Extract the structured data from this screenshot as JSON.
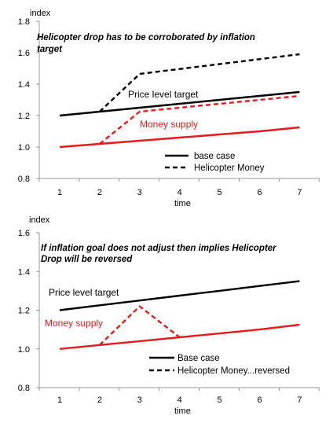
{
  "chart_data": [
    {
      "type": "line",
      "title_lines": [
        "Helicopter drop has to be corroborated by inflation",
        "target"
      ],
      "ylabel": "index",
      "xlabel": "time",
      "categories": [
        "1",
        "2",
        "3",
        "4",
        "5",
        "6",
        "7"
      ],
      "ylim": [
        0.8,
        1.8
      ],
      "yticks": [
        "0.8",
        "1.0",
        "1.2",
        "1.4",
        "1.6",
        "1.8"
      ],
      "ytick_values": [
        0.8,
        1.0,
        1.2,
        1.4,
        1.6,
        1.8
      ],
      "grid": false,
      "series": [
        {
          "group": "Price level target",
          "style": "base",
          "color": "#000000",
          "x": [
            1,
            2,
            3,
            4,
            5,
            6,
            7
          ],
          "values": [
            1.2,
            1.225,
            1.25,
            1.275,
            1.3,
            1.325,
            1.35
          ]
        },
        {
          "group": "Price level target",
          "style": "helicopter",
          "color": "#000000",
          "x": [
            2,
            3,
            7
          ],
          "values": [
            1.225,
            1.465,
            1.59
          ]
        },
        {
          "group": "Money supply",
          "style": "base",
          "color": "#e8191b",
          "x": [
            1,
            2,
            3,
            4,
            5,
            6,
            7
          ],
          "values": [
            1.0,
            1.02,
            1.04,
            1.06,
            1.08,
            1.1,
            1.125
          ]
        },
        {
          "group": "Money supply",
          "style": "helicopter",
          "color": "#e8191b",
          "x": [
            2,
            3,
            7
          ],
          "values": [
            1.02,
            1.225,
            1.325
          ]
        }
      ],
      "annotations": [
        {
          "text": "Price level target",
          "color": "#000000"
        },
        {
          "text": "Money supply",
          "color": "#e8191b"
        }
      ],
      "legend": {
        "placement": "bottom-right",
        "entries": [
          {
            "label": "base case",
            "style": "solid"
          },
          {
            "label": "Helicopter Money",
            "style": "dashed"
          }
        ]
      }
    },
    {
      "type": "line",
      "title_lines": [
        "If inflation goal does not adjust then implies Helicopter",
        "Drop will be reversed"
      ],
      "ylabel": "index",
      "xlabel": "time",
      "categories": [
        "1",
        "2",
        "3",
        "4",
        "5",
        "6",
        "7"
      ],
      "ylim": [
        0.8,
        1.6
      ],
      "yticks": [
        "0.8",
        "1.0",
        "1.2",
        "1.4",
        "1.6"
      ],
      "ytick_values": [
        0.8,
        1.0,
        1.2,
        1.4,
        1.6
      ],
      "grid": false,
      "series": [
        {
          "group": "Price level target",
          "style": "base",
          "color": "#000000",
          "x": [
            1,
            2,
            3,
            4,
            5,
            6,
            7
          ],
          "values": [
            1.2,
            1.225,
            1.25,
            1.275,
            1.3,
            1.325,
            1.35
          ]
        },
        {
          "group": "Money supply",
          "style": "base",
          "color": "#e8191b",
          "x": [
            1,
            2,
            3,
            4,
            5,
            6,
            7
          ],
          "values": [
            1.0,
            1.02,
            1.04,
            1.06,
            1.08,
            1.1,
            1.125
          ]
        },
        {
          "group": "Money supply",
          "style": "helicopter",
          "color": "#e8191b",
          "x": [
            2,
            3,
            4
          ],
          "values": [
            1.02,
            1.22,
            1.06
          ]
        }
      ],
      "annotations": [
        {
          "text": "Price level target",
          "color": "#000000"
        },
        {
          "text": "Money supply",
          "color": "#e8191b"
        }
      ],
      "legend": {
        "placement": "bottom-right",
        "entries": [
          {
            "label": "Base case",
            "style": "solid"
          },
          {
            "label": "Helicopter Money...reversed",
            "style": "dashed"
          }
        ]
      }
    }
  ]
}
